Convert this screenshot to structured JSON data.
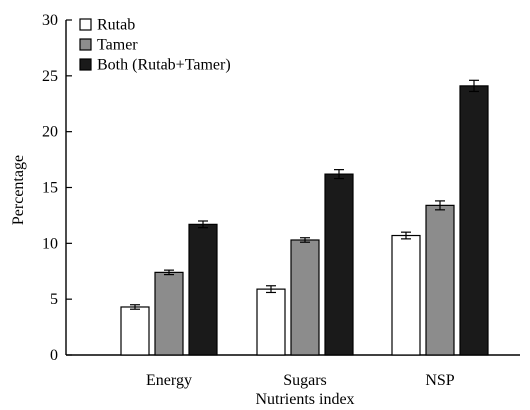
{
  "chart_data": {
    "type": "bar",
    "title": "",
    "xlabel": "Nutrients index",
    "ylabel": "Percentage",
    "ylim": [
      0,
      30
    ],
    "yticks": [
      0,
      5,
      10,
      15,
      20,
      25,
      30
    ],
    "categories": [
      "Energy",
      "Sugars",
      "NSP"
    ],
    "series": [
      {
        "name": "Rutab",
        "color": "#ffffff",
        "values": [
          4.3,
          5.9,
          10.7
        ],
        "errors": [
          0.2,
          0.3,
          0.3
        ]
      },
      {
        "name": "Tamer",
        "color": "#8c8c8c",
        "values": [
          7.4,
          10.3,
          13.4
        ],
        "errors": [
          0.2,
          0.2,
          0.4
        ]
      },
      {
        "name": "Both (Rutab+Tamer)",
        "color": "#1a1a1a",
        "values": [
          11.7,
          16.2,
          24.1
        ],
        "errors": [
          0.3,
          0.4,
          0.5
        ]
      }
    ],
    "legend_position": "top-left",
    "grid": false
  }
}
